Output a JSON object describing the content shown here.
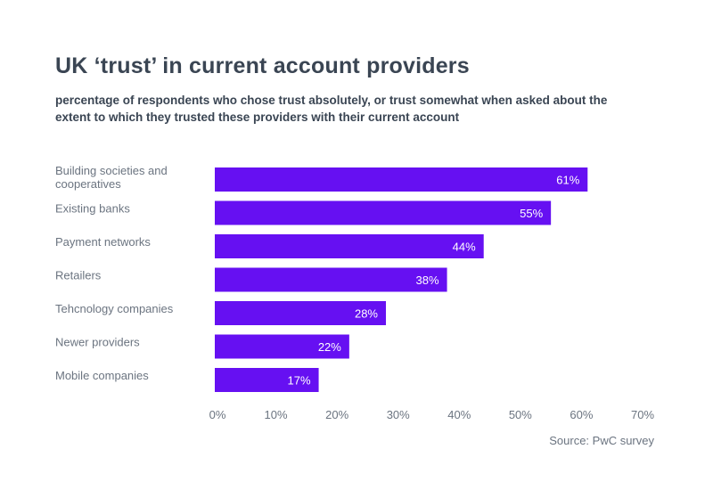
{
  "chart_data": {
    "type": "bar",
    "orientation": "horizontal",
    "title": "UK ‘trust’ in current account providers",
    "subtitle": "percentage of respondents who chose trust absolutely, or trust somewhat when asked about the extent to which they trusted these providers with their current account",
    "categories": [
      [
        "Building societies and",
        "cooperatives"
      ],
      [
        "Existing banks"
      ],
      [
        "Payment networks"
      ],
      [
        "Retailers"
      ],
      [
        "Tehcnology companies"
      ],
      [
        "Newer providers"
      ],
      [
        "Mobile companies"
      ]
    ],
    "values": [
      61,
      55,
      44,
      38,
      28,
      22,
      17
    ],
    "data_labels": [
      "61%",
      "55%",
      "44%",
      "38%",
      "28%",
      "22%",
      "17%"
    ],
    "xlim": [
      0,
      70
    ],
    "xticks": [
      "0%",
      "10%",
      "20%",
      "30%",
      "40%",
      "50%",
      "60%",
      "70%"
    ],
    "bar_color": "#6610f2",
    "grid": false,
    "source": "Source: PwC survey"
  }
}
